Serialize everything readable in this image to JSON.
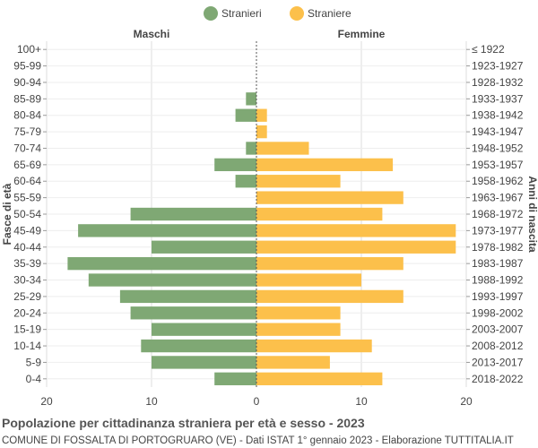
{
  "chart_data": {
    "type": "bar",
    "orientation": "horizontal-pyramid",
    "title": "Popolazione per cittadinanza straniera per età e sesso - 2023",
    "subtitle": "COMUNE DI FOSSALTA DI PORTOGRUARO (VE) - Dati ISTAT 1° gennaio 2023 - Elaborazione TUTTITALIA.IT",
    "left_header": "Maschi",
    "right_header": "Femmine",
    "ylabel_left": "Fasce di età",
    "ylabel_right": "Anni di nascita",
    "xlim": [
      -20,
      20
    ],
    "x_ticks": [
      -20,
      -10,
      0,
      10,
      20
    ],
    "x_tick_labels": [
      "20",
      "10",
      "0",
      "10",
      "20"
    ],
    "grid": true,
    "legend_position": "top-center",
    "categories": [
      "100+",
      "95-99",
      "90-94",
      "85-89",
      "80-84",
      "75-79",
      "70-74",
      "65-69",
      "60-64",
      "55-59",
      "50-54",
      "45-49",
      "40-44",
      "35-39",
      "30-34",
      "25-29",
      "20-24",
      "15-19",
      "10-14",
      "5-9",
      "0-4"
    ],
    "birth_years": [
      "≤ 1922",
      "1923-1927",
      "1928-1932",
      "1933-1937",
      "1938-1942",
      "1943-1947",
      "1948-1952",
      "1953-1957",
      "1958-1962",
      "1963-1967",
      "1968-1972",
      "1973-1977",
      "1978-1982",
      "1983-1987",
      "1988-1992",
      "1993-1997",
      "1998-2002",
      "2003-2007",
      "2008-2012",
      "2013-2017",
      "2018-2022"
    ],
    "series": [
      {
        "name": "Stranieri",
        "color": "#7fa874",
        "side": "left",
        "values": [
          0,
          0,
          0,
          1,
          2,
          0,
          1,
          4,
          2,
          0,
          12,
          17,
          10,
          18,
          16,
          13,
          12,
          10,
          11,
          10,
          4
        ]
      },
      {
        "name": "Straniere",
        "color": "#fcc04b",
        "side": "right",
        "values": [
          0,
          0,
          0,
          0,
          1,
          1,
          5,
          13,
          8,
          14,
          12,
          19,
          19,
          14,
          10,
          14,
          8,
          8,
          11,
          7,
          12
        ]
      }
    ]
  }
}
